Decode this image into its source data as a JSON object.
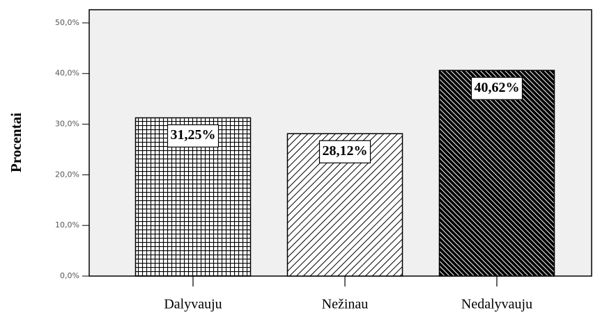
{
  "chart_data": {
    "type": "bar",
    "y_label": "Procentai",
    "categories": [
      "Dalyvauju",
      "Nežinau",
      "Nedalyvauju"
    ],
    "values": [
      31.25,
      28.12,
      40.62
    ],
    "value_labels": [
      "31,25%",
      "28,12%",
      "40,62%"
    ],
    "ylim": [
      0,
      52.6
    ],
    "yticks": [
      {
        "value": 0,
        "label": "0,0%"
      },
      {
        "value": 10,
        "label": "10,0%"
      },
      {
        "value": 20,
        "label": "20,0%"
      },
      {
        "value": 30,
        "label": "30,0%"
      },
      {
        "value": 40,
        "label": "40,0%"
      },
      {
        "value": 50,
        "label": "50,0%"
      }
    ]
  }
}
